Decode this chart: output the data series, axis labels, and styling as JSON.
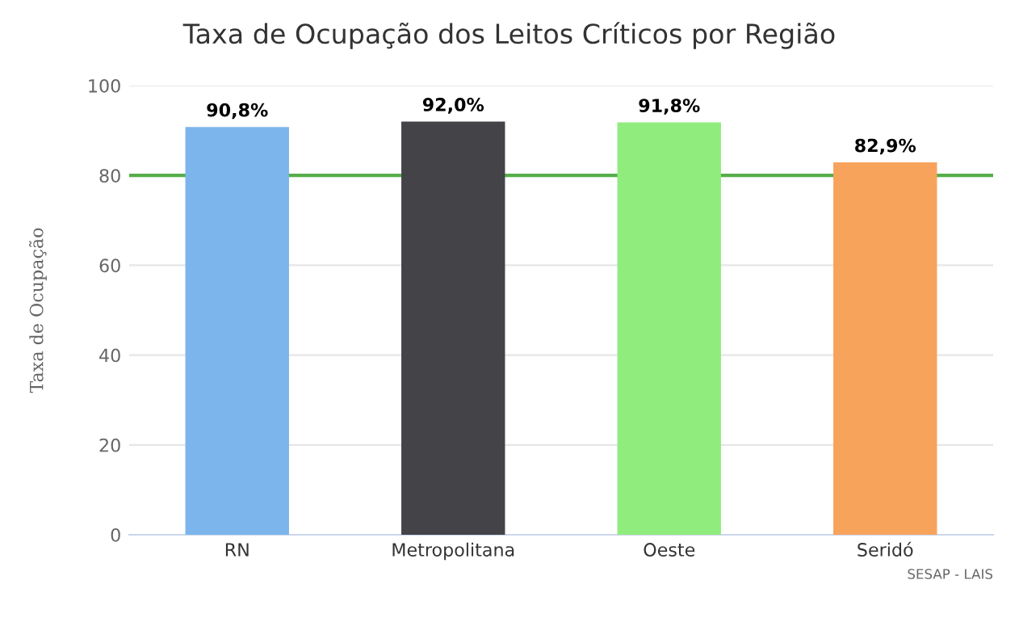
{
  "chart_data": {
    "type": "bar",
    "title": "Taxa de Ocupação dos Leitos Críticos por Região",
    "ylabel": "Taxa de Ocupação",
    "categories": [
      "RN",
      "Metropolitana",
      "Oeste",
      "Seridó"
    ],
    "values": [
      90.8,
      92.0,
      91.8,
      82.9
    ],
    "colors": [
      "#7cb5ec",
      "#434348",
      "#90ed7d",
      "#f7a35c"
    ],
    "value_labels": [
      "90,8%",
      "92,0%",
      "91,8%",
      "82,9%"
    ],
    "ylim": [
      0,
      100
    ],
    "yticks": [
      0,
      20,
      40,
      60,
      80,
      100
    ],
    "grid": "y",
    "ref_lines": [
      {
        "axis": "y",
        "value": 80,
        "label": null,
        "color": "#55ad4a"
      }
    ],
    "annotations": [
      "SESAP - LAIS"
    ]
  }
}
